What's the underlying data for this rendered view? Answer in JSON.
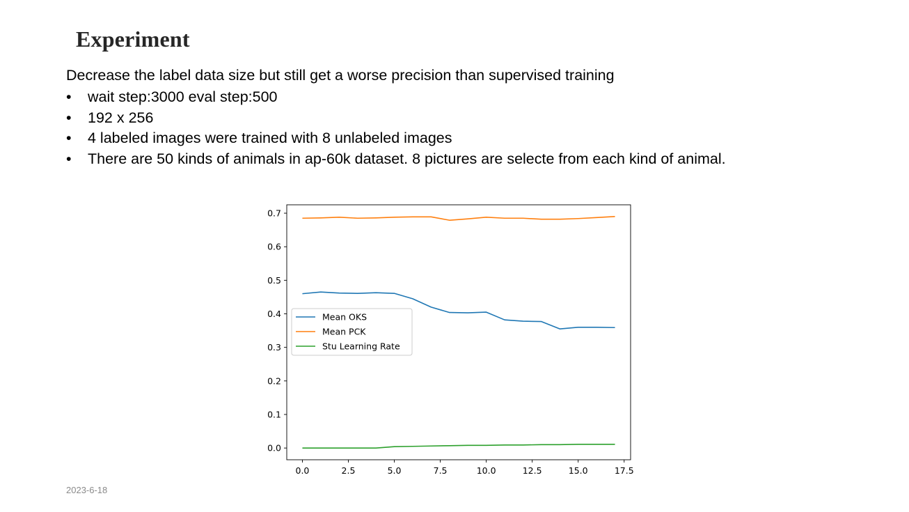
{
  "slide": {
    "title": "Experiment",
    "intro": "Decrease the label data size but still get a worse precision than supervised training",
    "bullets": [
      "wait step:3000  eval step:500",
      "192 x 256",
      "4 labeled images were trained with 8 unlabeled images",
      "There are 50 kinds of animals in  ap-60k dataset. 8 pictures are selecte  from each kind of animal."
    ],
    "bullet_symbol": "•",
    "date": "2023-6-18"
  },
  "chart_data": {
    "type": "line",
    "title": "",
    "xlabel": "",
    "ylabel": "",
    "xlim": [
      -0.85,
      17.85
    ],
    "ylim": [
      -0.035,
      0.725
    ],
    "xticks": [
      0.0,
      2.5,
      5.0,
      7.5,
      10.0,
      12.5,
      15.0,
      17.5
    ],
    "xtick_labels": [
      "0.0",
      "2.5",
      "5.0",
      "7.5",
      "10.0",
      "12.5",
      "15.0",
      "17.5"
    ],
    "yticks": [
      0.0,
      0.1,
      0.2,
      0.3,
      0.4,
      0.5,
      0.6,
      0.7
    ],
    "ytick_labels": [
      "0.0",
      "0.1",
      "0.2",
      "0.3",
      "0.4",
      "0.5",
      "0.6",
      "0.7"
    ],
    "grid": false,
    "legend_position": "center-left",
    "x": [
      0,
      1,
      2,
      3,
      4,
      5,
      6,
      7,
      8,
      9,
      10,
      11,
      12,
      13,
      14,
      15,
      16,
      17
    ],
    "series": [
      {
        "name": "Mean OKS",
        "color": "#1f77b4",
        "values": [
          0.46,
          0.465,
          0.462,
          0.461,
          0.463,
          0.461,
          0.445,
          0.42,
          0.404,
          0.403,
          0.405,
          0.382,
          0.378,
          0.377,
          0.355,
          0.36,
          0.36,
          0.359
        ]
      },
      {
        "name": "Mean PCK",
        "color": "#ff7f0e",
        "values": [
          0.685,
          0.686,
          0.688,
          0.685,
          0.686,
          0.688,
          0.689,
          0.689,
          0.679,
          0.683,
          0.688,
          0.685,
          0.685,
          0.682,
          0.682,
          0.684,
          0.687,
          0.69
        ]
      },
      {
        "name": "Stu Learning Rate",
        "color": "#2ca02c",
        "values": [
          0.0,
          0.0,
          0.0,
          0.0,
          0.0,
          0.004,
          0.005,
          0.006,
          0.007,
          0.008,
          0.008,
          0.009,
          0.009,
          0.01,
          0.01,
          0.011,
          0.011,
          0.011
        ]
      }
    ]
  }
}
